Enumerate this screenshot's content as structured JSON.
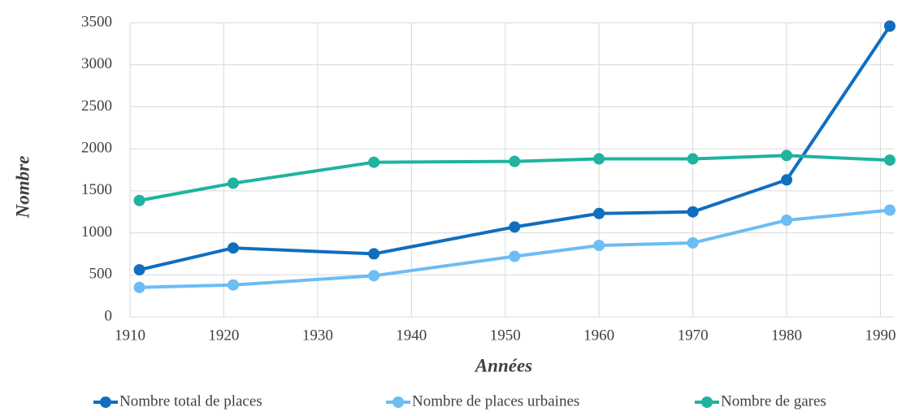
{
  "chart_data": {
    "type": "line",
    "x": [
      1911,
      1921,
      1936,
      1951,
      1960,
      1970,
      1980,
      1991
    ],
    "series": [
      {
        "name": "Nombre total de places",
        "color": "#106ebe",
        "values": [
          560,
          820,
          750,
          1070,
          1230,
          1250,
          1630,
          3460
        ]
      },
      {
        "name": "Nombre de places urbaines",
        "color": "#6cbcf5",
        "values": [
          350,
          380,
          490,
          720,
          850,
          880,
          1150,
          1270
        ]
      },
      {
        "name": "Nombre de gares",
        "color": "#1fb3a0",
        "values": [
          1385,
          1590,
          1840,
          1850,
          1880,
          1880,
          1920,
          1865
        ]
      }
    ],
    "xlim": [
      1910,
      1991
    ],
    "xticks": [
      1910,
      1920,
      1930,
      1940,
      1950,
      1960,
      1970,
      1980,
      1990
    ],
    "ylim": [
      0,
      3500
    ],
    "yticks": [
      0,
      500,
      1000,
      1500,
      2000,
      2500,
      3000,
      3500
    ],
    "xlabel": "Années",
    "ylabel": "Nombre",
    "grid": true,
    "legend": "bottom"
  }
}
